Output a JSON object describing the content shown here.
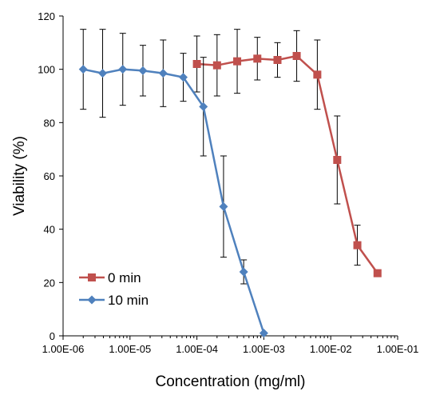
{
  "chart_data": {
    "type": "line",
    "xlabel": "Concentration (mg/ml)",
    "ylabel": "Viability (%)",
    "x_scale": "log",
    "xlim": [
      1e-06,
      0.1
    ],
    "ylim": [
      0,
      120
    ],
    "x_tick_values": [
      1e-06,
      1e-05,
      0.0001,
      0.001,
      0.01,
      0.1
    ],
    "x_tick_labels": [
      "1.00E-06",
      "1.00E-05",
      "1.00E-04",
      "1.00E-03",
      "1.00E-02",
      "1.00E-01"
    ],
    "y_tick_values": [
      0,
      20,
      40,
      60,
      80,
      100,
      120
    ],
    "y_tick_labels": [
      "0",
      "20",
      "40",
      "60",
      "80",
      "100",
      "120"
    ],
    "grid": false,
    "legend_position": "bottom-left",
    "series": [
      {
        "name": "0 min",
        "color": "#C0504D",
        "marker": "square",
        "x": [
          0.0001,
          0.0002,
          0.0004,
          0.0008,
          0.0016,
          0.0031,
          0.0063,
          0.0125,
          0.025,
          0.05
        ],
        "y": [
          102,
          101.5,
          103,
          104,
          103.5,
          105,
          98,
          66,
          34,
          23.5
        ],
        "error": [
          10.5,
          11.5,
          12,
          8,
          6.5,
          9.5,
          13,
          16.5,
          7.5,
          0
        ]
      },
      {
        "name": "10 min",
        "color": "#4F81BD",
        "marker": "diamond",
        "x": [
          2e-06,
          3.9e-06,
          7.8e-06,
          1.56e-05,
          3.13e-05,
          6.25e-05,
          0.000125,
          0.00025,
          0.0005,
          0.001
        ],
        "y": [
          100,
          98.5,
          100,
          99.5,
          98.5,
          97,
          86,
          48.5,
          24,
          1
        ],
        "error": [
          15,
          16.5,
          13.5,
          9.5,
          12.5,
          9,
          18.5,
          19,
          4.5,
          0
        ]
      }
    ]
  }
}
